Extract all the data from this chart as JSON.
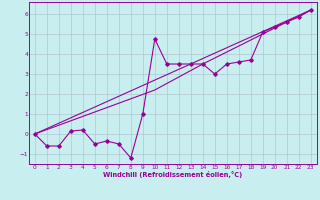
{
  "xlabel": "Windchill (Refroidissement éolien,°C)",
  "bg_color": "#c8eef0",
  "line_color": "#990099",
  "grid_color": "#b0c8d0",
  "xlim": [
    -0.5,
    23.5
  ],
  "ylim": [
    -1.5,
    6.6
  ],
  "xticks": [
    0,
    1,
    2,
    3,
    4,
    5,
    6,
    7,
    8,
    9,
    10,
    11,
    12,
    13,
    14,
    15,
    16,
    17,
    18,
    19,
    20,
    21,
    22,
    23
  ],
  "yticks": [
    -1,
    0,
    1,
    2,
    3,
    4,
    5,
    6
  ],
  "line1_x": [
    0,
    1,
    2,
    3,
    4,
    5,
    6,
    7,
    8,
    9,
    10,
    11,
    12,
    13,
    14,
    15,
    16,
    17,
    18,
    19,
    20,
    21,
    22,
    23
  ],
  "line1_y": [
    0.0,
    -0.6,
    -0.6,
    0.15,
    0.2,
    -0.5,
    -0.35,
    -0.5,
    -1.2,
    1.0,
    4.75,
    3.5,
    3.5,
    3.5,
    3.5,
    3.0,
    3.5,
    3.6,
    3.7,
    5.1,
    5.35,
    5.6,
    5.85,
    6.2
  ],
  "line2_x": [
    0,
    23
  ],
  "line2_y": [
    0.0,
    6.2
  ],
  "line3_x": [
    0,
    10,
    14,
    23
  ],
  "line3_y": [
    0.0,
    2.2,
    3.5,
    6.2
  ]
}
